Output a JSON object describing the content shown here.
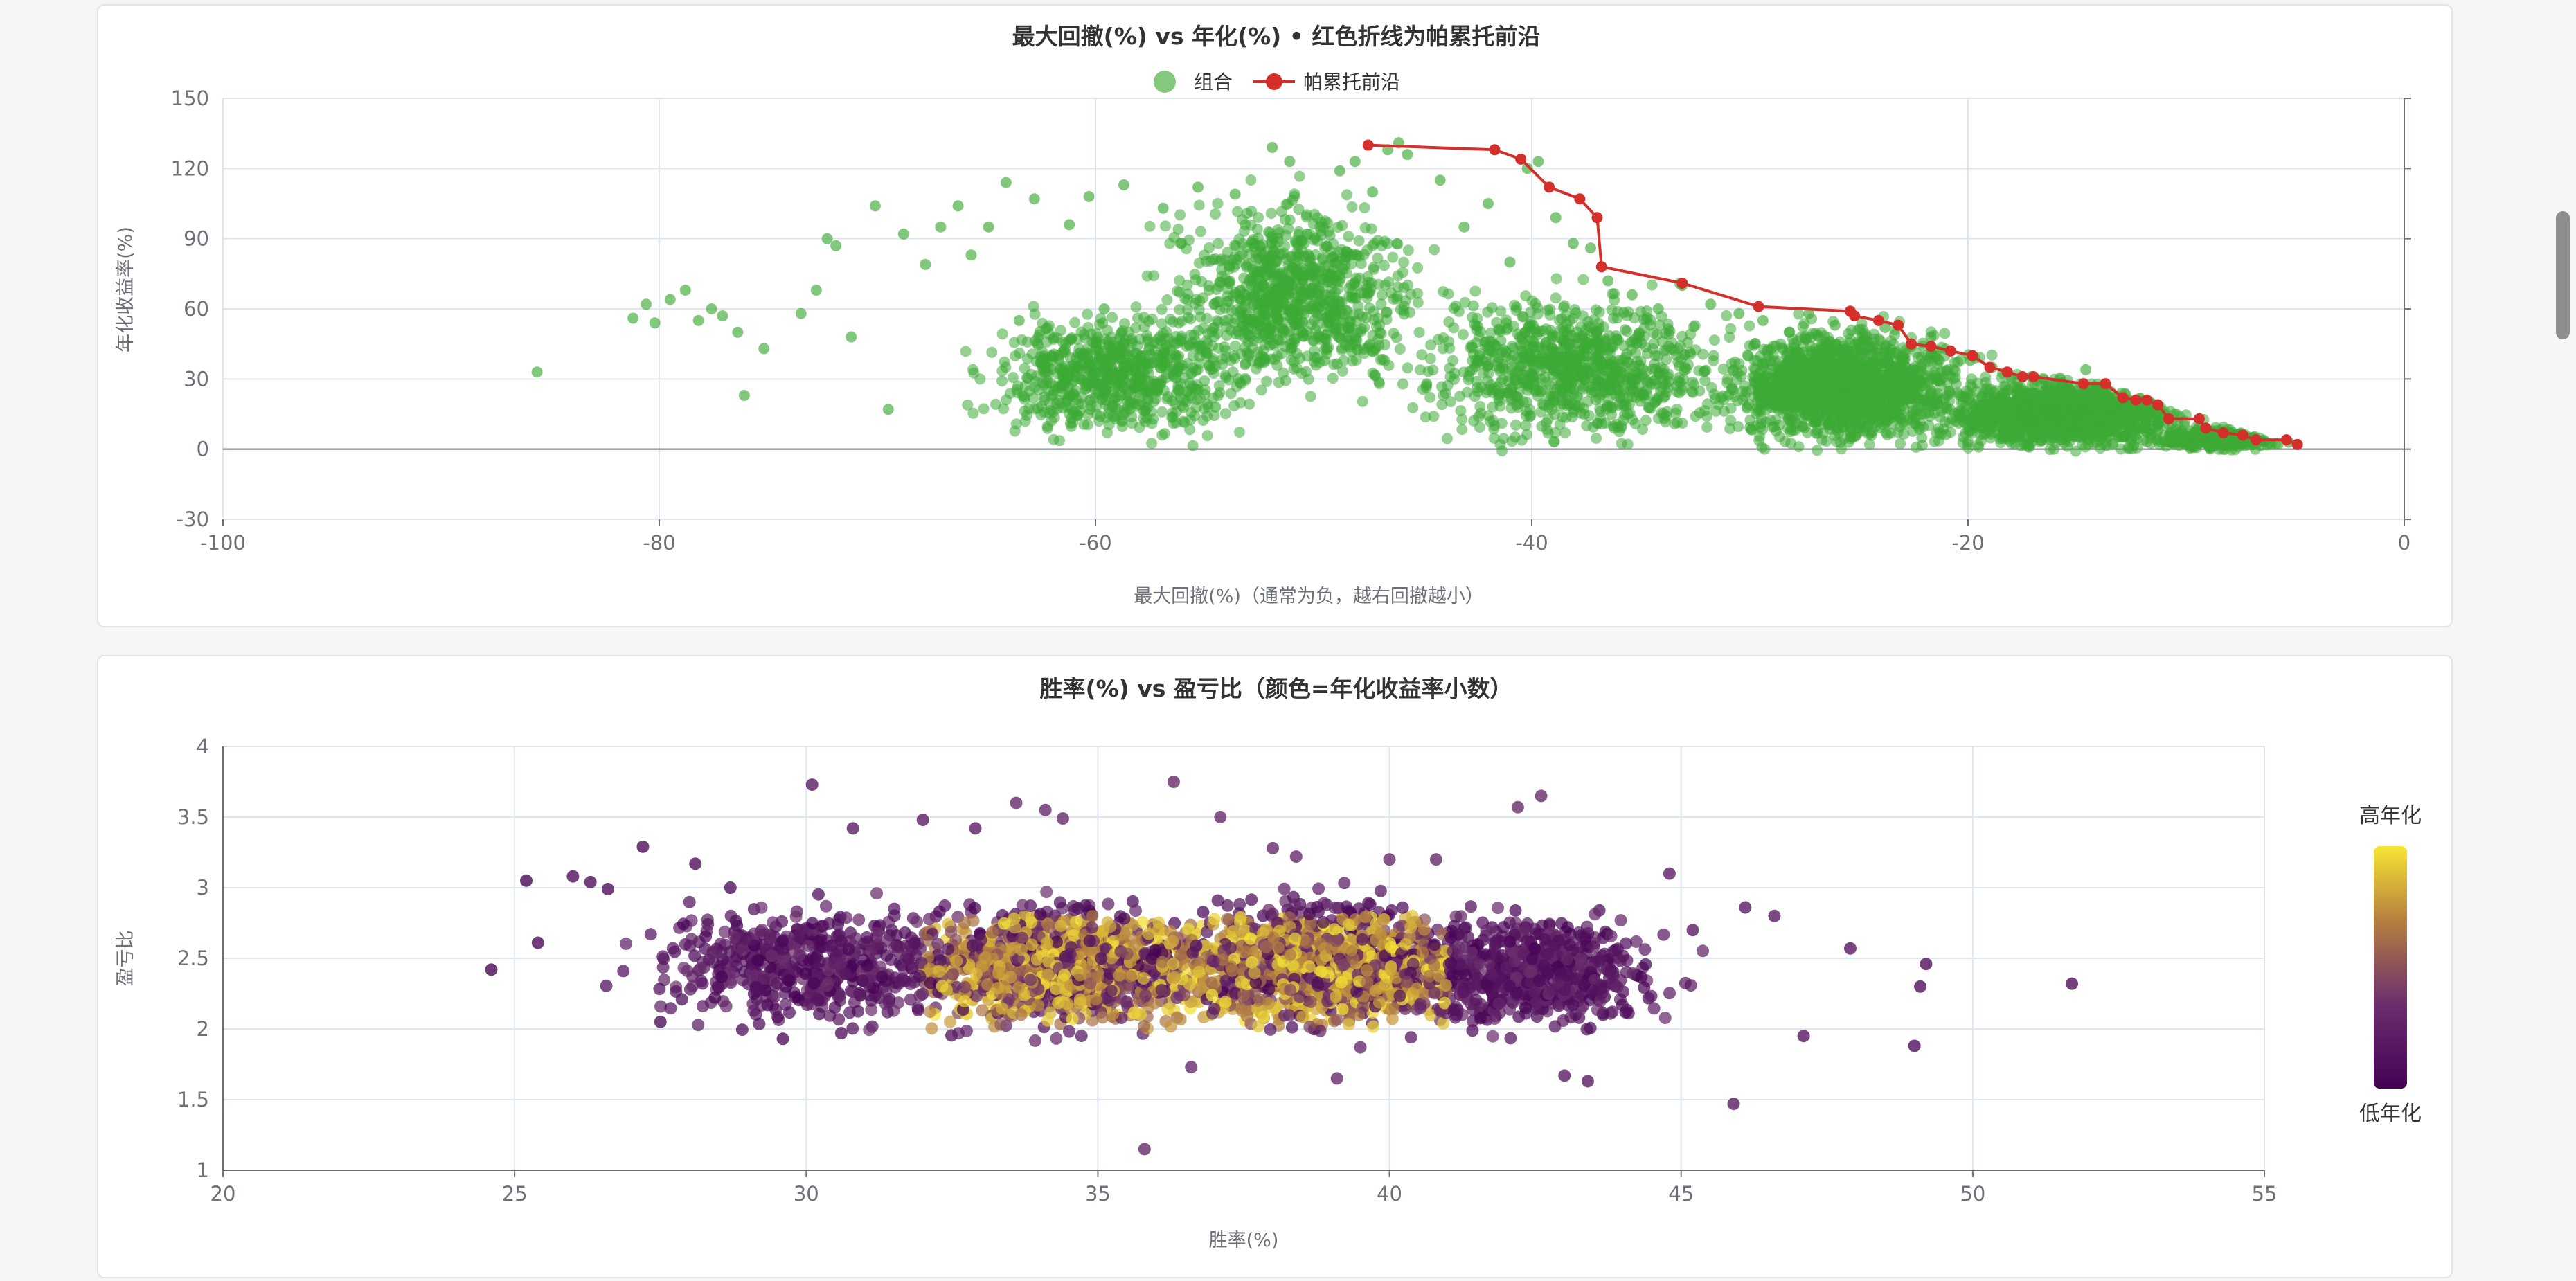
{
  "chart_data": [
    {
      "type": "scatter",
      "title": "最大回撤(%) vs 年化(%) • 红色折线为帕累托前沿",
      "xlabel": "最大回撤(%)（通常为负，越右回撤越小）",
      "ylabel": "年化收益率(%)",
      "xlim": [
        -100,
        0
      ],
      "ylim": [
        -30,
        150
      ],
      "xticks": [
        "-100",
        "-80",
        "-60",
        "-40",
        "-20",
        "0"
      ],
      "yticks": [
        "-30",
        "0",
        "30",
        "60",
        "90",
        "120",
        "150"
      ],
      "grid": true,
      "legend_position": "top-center",
      "series": [
        {
          "name": "组合",
          "color": "#3daa35",
          "values": [
            [
              -85.6,
              33
            ],
            [
              -81.2,
              56
            ],
            [
              -80.6,
              62
            ],
            [
              -80.2,
              54
            ],
            [
              -79.5,
              64
            ],
            [
              -78.8,
              68
            ],
            [
              -78.2,
              55
            ],
            [
              -77.6,
              60
            ],
            [
              -77.1,
              57
            ],
            [
              -76.4,
              50
            ],
            [
              -75.2,
              43
            ],
            [
              -76.1,
              23
            ],
            [
              -73.5,
              58
            ],
            [
              -72.8,
              68
            ],
            [
              -72.3,
              90
            ],
            [
              -71.9,
              87
            ],
            [
              -71.2,
              48
            ],
            [
              -70.1,
              104
            ],
            [
              -69.5,
              17
            ],
            [
              -68.8,
              92
            ],
            [
              -67.8,
              79
            ],
            [
              -67.1,
              95
            ],
            [
              -66.3,
              104
            ],
            [
              -65.7,
              83
            ],
            [
              -64.9,
              95
            ],
            [
              -64.1,
              114
            ],
            [
              -63.5,
              55
            ],
            [
              -62.8,
              107
            ],
            [
              -61.9,
              25
            ],
            [
              -61.2,
              96
            ],
            [
              -60.3,
              108
            ],
            [
              -59.6,
              60
            ],
            [
              -58.7,
              113
            ],
            [
              -57.8,
              40
            ],
            [
              -56.9,
              103
            ],
            [
              -56.1,
              88
            ],
            [
              -55.3,
              112
            ],
            [
              -54.5,
              18
            ],
            [
              -53.6,
              109
            ],
            [
              -52.8,
              77
            ],
            [
              -51.9,
              129
            ],
            [
              -51.1,
              123
            ],
            [
              -50.3,
              92
            ],
            [
              -49.5,
              38
            ],
            [
              -48.8,
              119
            ],
            [
              -48.1,
              123
            ],
            [
              -47.3,
              110
            ],
            [
              -46.6,
              128
            ],
            [
              -46.1,
              131
            ],
            [
              -45.7,
              126
            ],
            [
              -44.2,
              115
            ],
            [
              -43.1,
              95
            ],
            [
              -42.0,
              105
            ],
            [
              -41.0,
              80
            ],
            [
              -40.2,
              120
            ],
            [
              -39.7,
              123
            ],
            [
              -38.9,
              99
            ],
            [
              -38.1,
              88
            ],
            [
              -37.3,
              86
            ],
            [
              -36.5,
              72
            ],
            [
              -35.4,
              66
            ],
            [
              -34.2,
              60
            ],
            [
              -33.1,
              70
            ],
            [
              -31.8,
              62
            ],
            [
              -30.5,
              58
            ],
            [
              -29.4,
              55
            ],
            [
              -28.2,
              50
            ],
            [
              -27.3,
              58
            ],
            [
              -26.1,
              53
            ],
            [
              -25.4,
              59
            ],
            [
              -24.6,
              46
            ],
            [
              -23.8,
              52
            ],
            [
              -22.6,
              44
            ],
            [
              -21.7,
              48
            ],
            [
              -20.8,
              42
            ],
            [
              -19.9,
              38
            ],
            [
              -18.9,
              35
            ],
            [
              -18.0,
              30
            ],
            [
              -17.1,
              31
            ],
            [
              -16.2,
              28
            ],
            [
              -15.3,
              25
            ],
            [
              -14.6,
              34
            ],
            [
              -13.8,
              26
            ],
            [
              -12.9,
              22
            ],
            [
              -12.0,
              18
            ],
            [
              -11.2,
              14
            ],
            [
              -10.4,
              11
            ],
            [
              -9.5,
              8
            ],
            [
              -8.6,
              6
            ],
            [
              -7.8,
              4
            ],
            [
              -7.0,
              3
            ],
            [
              -6.1,
              2
            ],
            [
              -5.3,
              3
            ]
          ],
          "clusters": [
            {
              "x": [
                -66,
                -52
              ],
              "y": [
                0,
                62
              ],
              "count": 700
            },
            {
              "x": [
                -58,
                -44
              ],
              "y": [
                20,
                112
              ],
              "count": 900
            },
            {
              "x": [
                -46,
                -30
              ],
              "y": [
                -2,
                72
              ],
              "count": 900
            },
            {
              "x": [
                -32,
                -19
              ],
              "y": [
                -2,
                56
              ],
              "count": 1500
            },
            {
              "x": [
                -22,
                -9
              ],
              "y": [
                -2,
                32
              ],
              "count": 1400
            },
            {
              "x": [
                -12,
                -5
              ],
              "y": [
                -1,
                10
              ],
              "count": 300
            }
          ]
        },
        {
          "name": "帕累托前沿",
          "color": "#d42f2a",
          "values": [
            [
              -47.5,
              130
            ],
            [
              -41.7,
              128
            ],
            [
              -40.5,
              124
            ],
            [
              -39.2,
              112
            ],
            [
              -37.8,
              107
            ],
            [
              -37.0,
              99
            ],
            [
              -36.8,
              78
            ],
            [
              -33.1,
              71
            ],
            [
              -29.6,
              61
            ],
            [
              -25.4,
              59
            ],
            [
              -25.2,
              57
            ],
            [
              -24.1,
              55
            ],
            [
              -23.2,
              53
            ],
            [
              -22.6,
              45
            ],
            [
              -21.7,
              44
            ],
            [
              -20.8,
              42
            ],
            [
              -19.8,
              40
            ],
            [
              -19.0,
              35
            ],
            [
              -18.2,
              33
            ],
            [
              -17.5,
              31
            ],
            [
              -17.0,
              31
            ],
            [
              -14.7,
              28
            ],
            [
              -13.7,
              28
            ],
            [
              -12.9,
              22
            ],
            [
              -12.3,
              21
            ],
            [
              -11.8,
              21
            ],
            [
              -11.3,
              19
            ],
            [
              -10.8,
              13
            ],
            [
              -9.4,
              13
            ],
            [
              -9.1,
              9
            ],
            [
              -8.3,
              7
            ],
            [
              -7.4,
              6
            ],
            [
              -6.8,
              4
            ],
            [
              -5.4,
              4
            ],
            [
              -4.9,
              2
            ]
          ]
        }
      ]
    },
    {
      "type": "scatter",
      "title": "胜率(%) vs 盈亏比（颜色=年化收益率小数）",
      "xlabel": "胜率(%)",
      "ylabel": "盈亏比",
      "xlim": [
        20,
        55
      ],
      "ylim": [
        1,
        4
      ],
      "xticks": [
        "20",
        "25",
        "30",
        "35",
        "40",
        "45",
        "50",
        "55"
      ],
      "yticks": [
        "1",
        "1.5",
        "2",
        "2.5",
        "3",
        "3.5",
        "4"
      ],
      "grid": true,
      "visual_map": {
        "high_label": "高年化",
        "low_label": "低年化",
        "colors": [
          "#440154",
          "#6b2f6e",
          "#b6813e",
          "#f7e634"
        ],
        "position": "right"
      },
      "series": [
        {
          "name": "",
          "values": [
            [
              24.6,
              2.42,
              0.05
            ],
            [
              25.2,
              3.05,
              0.05
            ],
            [
              25.4,
              2.61,
              0.08
            ],
            [
              26.0,
              3.08,
              0.1
            ],
            [
              26.3,
              3.04,
              0.1
            ],
            [
              26.6,
              2.99,
              0.1
            ],
            [
              27.2,
              3.29,
              0.1
            ],
            [
              27.5,
              2.05,
              0.1
            ],
            [
              28.1,
              3.17,
              0.1
            ],
            [
              28.7,
              3.0,
              0.1
            ],
            [
              29.6,
              1.93,
              0.1
            ],
            [
              30.1,
              3.73,
              0.2
            ],
            [
              30.6,
              1.97,
              0.15
            ],
            [
              30.8,
              3.42,
              0.2
            ],
            [
              32.0,
              3.48,
              0.2
            ],
            [
              32.9,
              3.42,
              0.2
            ],
            [
              33.6,
              3.6,
              0.3
            ],
            [
              34.1,
              3.55,
              0.3
            ],
            [
              34.4,
              3.49,
              0.3
            ],
            [
              35.8,
              1.15,
              0.3
            ],
            [
              36.3,
              3.75,
              0.3
            ],
            [
              36.6,
              1.73,
              0.3
            ],
            [
              37.1,
              3.5,
              0.3
            ],
            [
              38.0,
              3.28,
              0.3
            ],
            [
              38.4,
              3.22,
              0.3
            ],
            [
              39.1,
              1.65,
              0.3
            ],
            [
              40.0,
              3.2,
              0.3
            ],
            [
              40.8,
              3.2,
              0.3
            ],
            [
              42.2,
              3.57,
              0.3
            ],
            [
              42.6,
              3.65,
              0.3
            ],
            [
              43.0,
              1.67,
              0.2
            ],
            [
              43.4,
              1.63,
              0.2
            ],
            [
              44.8,
              3.1,
              0.2
            ],
            [
              45.2,
              2.7,
              0.2
            ],
            [
              45.9,
              1.47,
              0.2
            ],
            [
              46.1,
              2.86,
              0.2
            ],
            [
              46.6,
              2.8,
              0.2
            ],
            [
              47.1,
              1.95,
              0.15
            ],
            [
              47.9,
              2.57,
              0.15
            ],
            [
              49.0,
              1.88,
              0.1
            ],
            [
              49.1,
              2.3,
              0.1
            ],
            [
              49.2,
              2.46,
              0.1
            ],
            [
              51.7,
              2.32,
              0.1
            ]
          ],
          "clusters": [
            {
              "x": [
                27,
                33
              ],
              "y": [
                1.9,
                3.0
              ],
              "count": 500
            },
            {
              "x": [
                31,
                38
              ],
              "y": [
                1.9,
                3.0
              ],
              "count": 1200
            },
            {
              "x": [
                36,
                42
              ],
              "y": [
                1.9,
                3.0
              ],
              "count": 1300
            },
            {
              "x": [
                40,
                45
              ],
              "y": [
                1.9,
                2.9
              ],
              "count": 600
            }
          ]
        }
      ]
    }
  ]
}
